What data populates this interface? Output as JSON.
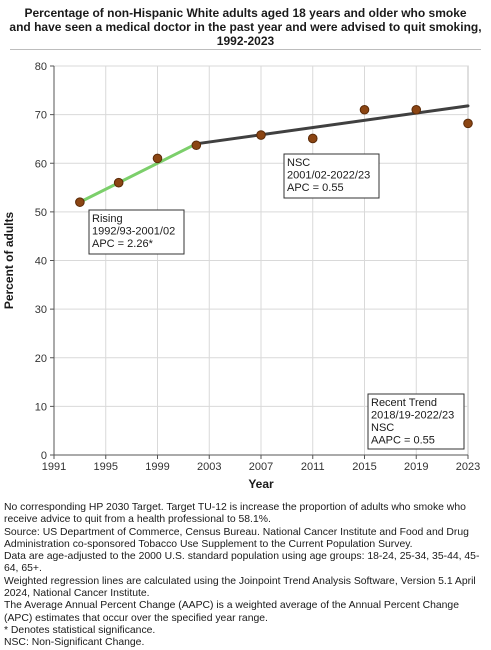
{
  "chart_data": {
    "type": "scatter",
    "title_lines": [
      "Percentage of non-Hispanic White  adults aged 18 years and older who smoke",
      "and have seen a medical doctor in the past year and were advised to quit smoking,",
      "1992-2023"
    ],
    "xlabel": "Year",
    "ylabel": "Percent of adults",
    "xlim": [
      1991,
      2023
    ],
    "ylim": [
      0,
      80
    ],
    "x_ticks": [
      "1991",
      "1995",
      "1999",
      "2003",
      "2007",
      "2011",
      "2015",
      "2019",
      "2023"
    ],
    "y_ticks": [
      "0",
      "10",
      "20",
      "30",
      "40",
      "50",
      "60",
      "70",
      "80"
    ],
    "grid": true,
    "points": [
      {
        "x": 1993,
        "y": 52.0
      },
      {
        "x": 1996,
        "y": 56.0
      },
      {
        "x": 1999,
        "y": 61.0
      },
      {
        "x": 2002,
        "y": 63.7
      },
      {
        "x": 2007,
        "y": 65.8
      },
      {
        "x": 2011,
        "y": 65.1
      },
      {
        "x": 2015,
        "y": 71.0
      },
      {
        "x": 2019,
        "y": 71.0
      },
      {
        "x": 2023,
        "y": 68.2
      }
    ],
    "trend_segments": [
      {
        "x": [
          1993,
          2002
        ],
        "y": [
          52.0,
          64.0
        ],
        "color": "#7ccf6b"
      },
      {
        "x": [
          2002,
          2023
        ],
        "y": [
          64.0,
          71.8
        ],
        "color": "#404040"
      }
    ],
    "annotations": [
      {
        "lines": [
          "Rising",
          "1992/93-2001/02",
          "APC =  2.26*"
        ]
      },
      {
        "lines": [
          "NSC",
          "2001/02-2022/23",
          "APC =  0.55"
        ]
      },
      {
        "lines": [
          "Recent Trend",
          "2018/19-2022/23",
          "NSC",
          "AAPC =  0.55"
        ]
      }
    ],
    "colors": {
      "point_fill": "#8b4513",
      "point_stroke": "#5a2a08",
      "grid": "#d9d9d9",
      "axis": "#555555"
    }
  },
  "footnotes": [
    "No corresponding HP 2030 Target. Target TU-12 is increase the proportion of adults who smoke who receive advice to quit from a health professional to 58.1%.",
    "Source: US Department of Commerce, Census Bureau. National Cancer Institute and Food and Drug Administration co-sponsored Tobacco Use Supplement to the Current Population Survey.",
    "Data are age-adjusted to the 2000 U.S. standard population using age groups: 18-24, 25-34, 35-44, 45-64, 65+.",
    "Weighted regression lines are calculated using the Joinpoint Trend Analysis Software, Version 5.1 April 2024, National Cancer Institute.",
    "The Average Annual Percent Change (AAPC) is a weighted average of the Annual Percent Change (APC) estimates that occur over the specified year range.",
    "* Denotes statistical significance.",
    "NSC: Non-Significant Change."
  ]
}
